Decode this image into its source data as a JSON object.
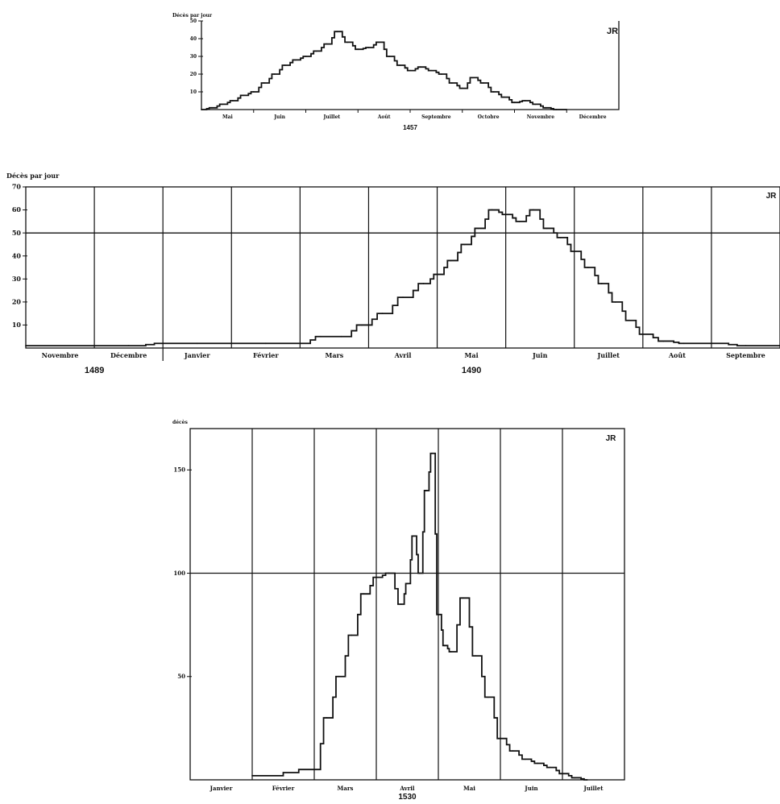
{
  "chart_data": [
    {
      "type": "line",
      "ylabel": "Décès par jour",
      "ylim": [
        0,
        50
      ],
      "yticks": [
        10,
        20,
        30,
        40,
        50
      ],
      "categories": [
        "Mai",
        "Juin",
        "Juillet",
        "Août",
        "Septembre",
        "Octobre",
        "Novembre",
        "Décembre"
      ],
      "year_label": "1457",
      "corner_mark": "JR",
      "grid": false,
      "series": [
        {
          "x": [
            0,
            0.2,
            0.4,
            0.6,
            0.8,
            1.0,
            1.2,
            1.4,
            1.6,
            1.8,
            2.0,
            2.2,
            2.4,
            2.6,
            2.8,
            3.0,
            3.2,
            3.4,
            3.6,
            3.8,
            4.0,
            4.2,
            4.4,
            4.6,
            4.8,
            5.0,
            5.2,
            5.4,
            5.6,
            5.8,
            6.0,
            6.2,
            6.4,
            6.6,
            6.8,
            7.0
          ],
          "values": [
            0,
            1,
            3,
            5,
            8,
            10,
            15,
            20,
            25,
            28,
            30,
            33,
            37,
            44,
            38,
            34,
            35,
            38,
            30,
            25,
            22,
            24,
            22,
            20,
            15,
            12,
            18,
            15,
            10,
            7,
            4,
            5,
            3,
            1,
            0,
            0
          ]
        }
      ]
    },
    {
      "type": "line",
      "ylabel": "Décès par jour",
      "ylim": [
        0,
        70
      ],
      "yticks": [
        10,
        20,
        30,
        40,
        50,
        60,
        70
      ],
      "categories": [
        "Novembre",
        "Décembre",
        "Janvier",
        "Février",
        "Mars",
        "Avril",
        "Mai",
        "Juin",
        "Juillet",
        "Août",
        "Septembre"
      ],
      "year_labels": [
        "1489",
        "1490"
      ],
      "corner_mark": "JR",
      "grid": true,
      "reference_line": 50,
      "series": [
        {
          "x": [
            0,
            1.0,
            1.5,
            2.0,
            2.5,
            3.0,
            3.5,
            4.0,
            4.3,
            4.6,
            4.9,
            5.2,
            5.5,
            5.8,
            6.0,
            6.2,
            6.4,
            6.6,
            6.8,
            7.0,
            7.2,
            7.4,
            7.6,
            7.8,
            8.0,
            8.2,
            8.4,
            8.6,
            8.8,
            9.0,
            9.3,
            9.6,
            10.0,
            10.5,
            11.0
          ],
          "values": [
            1,
            1,
            1,
            2,
            2,
            2,
            2,
            2,
            5,
            5,
            10,
            15,
            22,
            28,
            32,
            38,
            45,
            52,
            60,
            58,
            55,
            60,
            52,
            48,
            42,
            35,
            28,
            20,
            12,
            6,
            3,
            2,
            2,
            1,
            1
          ]
        }
      ]
    },
    {
      "type": "line",
      "ylabel": "décès",
      "ylim": [
        0,
        170
      ],
      "yticks": [
        50,
        100,
        150
      ],
      "categories": [
        "Janvier",
        "Février",
        "Mars",
        "Avril",
        "Mai",
        "Juin",
        "Juillet"
      ],
      "year_label": "1530",
      "corner_mark": "JR",
      "grid": true,
      "series": [
        {
          "x": [
            1.0,
            2.0,
            2.2,
            2.4,
            2.6,
            2.8,
            3.0,
            3.2,
            3.4,
            3.5,
            3.6,
            3.7,
            3.8,
            3.9,
            4.0,
            4.1,
            4.2,
            4.4,
            4.6,
            4.8,
            5.0,
            5.2,
            5.4,
            5.6,
            5.8,
            6.0,
            6.2,
            6.4
          ],
          "values": [
            2,
            5,
            30,
            50,
            70,
            90,
            98,
            100,
            85,
            95,
            118,
            100,
            140,
            158,
            80,
            65,
            62,
            88,
            60,
            40,
            20,
            14,
            10,
            8,
            6,
            3,
            1,
            0
          ]
        }
      ]
    }
  ]
}
